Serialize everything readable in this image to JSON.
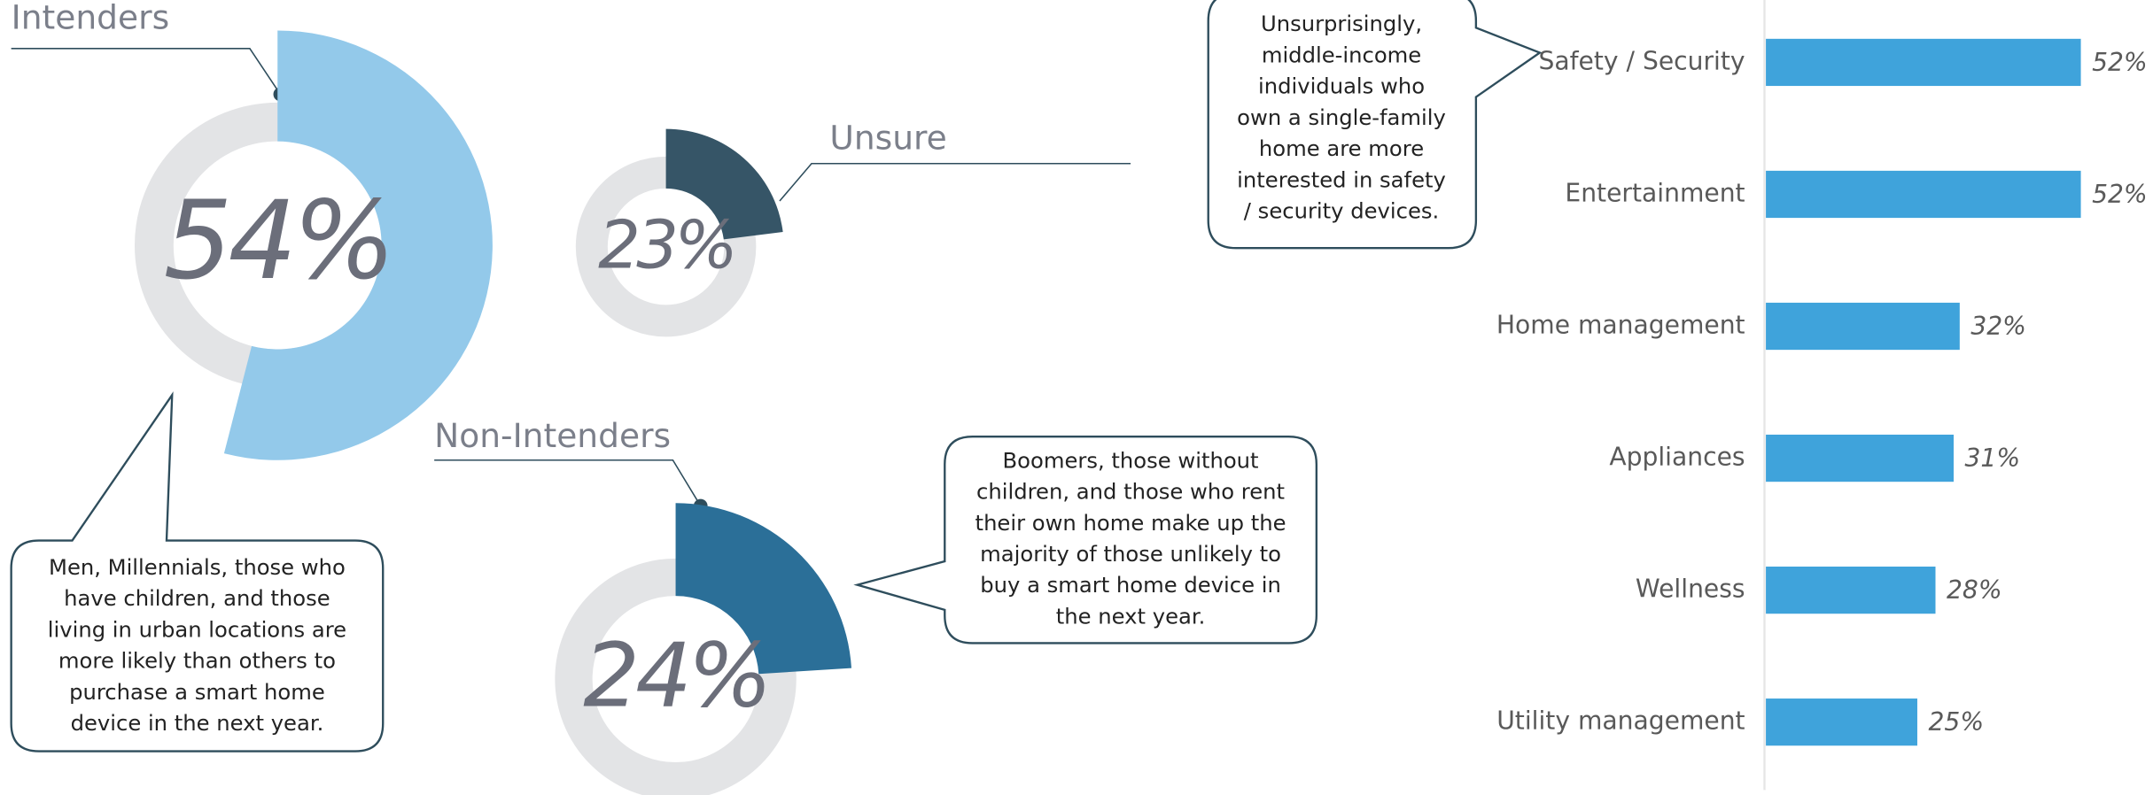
{
  "chart_data": [
    {
      "type": "donut",
      "title": "Intenders",
      "value": 54,
      "value_label": "54%",
      "color": "#93c9ea",
      "annotation": [
        "Men, Millennials, those who",
        "have children, and those",
        "living in urban locations are",
        "more likely than others to",
        "purchase a smart home",
        "device in the next year."
      ]
    },
    {
      "type": "donut",
      "title": "Unsure",
      "value": 23,
      "value_label": "23%",
      "color": "#365567"
    },
    {
      "type": "donut",
      "title": "Non-Intenders",
      "value": 24,
      "value_label": "24%",
      "color": "#2b6f98",
      "annotation": [
        "Boomers, those without",
        "children, and those who rent",
        "their own home make up the",
        "majority of those unlikely to",
        "buy a smart home device in",
        "the next year."
      ]
    },
    {
      "type": "hbar",
      "categories": [
        "Safety / Security",
        "Entertainment",
        "Home management",
        "Appliances",
        "Wellness",
        "Utility management"
      ],
      "values": [
        52,
        52,
        32,
        31,
        28,
        25
      ],
      "value_labels": [
        "52%",
        "52%",
        "32%",
        "31%",
        "28%",
        "25%"
      ],
      "color": "#3fa3db",
      "xlim": [
        0,
        60
      ],
      "annotation": [
        "Unsurprisingly,",
        "middle-income",
        "individuals who",
        "own a single-family",
        "home are more",
        "interested in safety",
        "/ security devices."
      ]
    }
  ]
}
